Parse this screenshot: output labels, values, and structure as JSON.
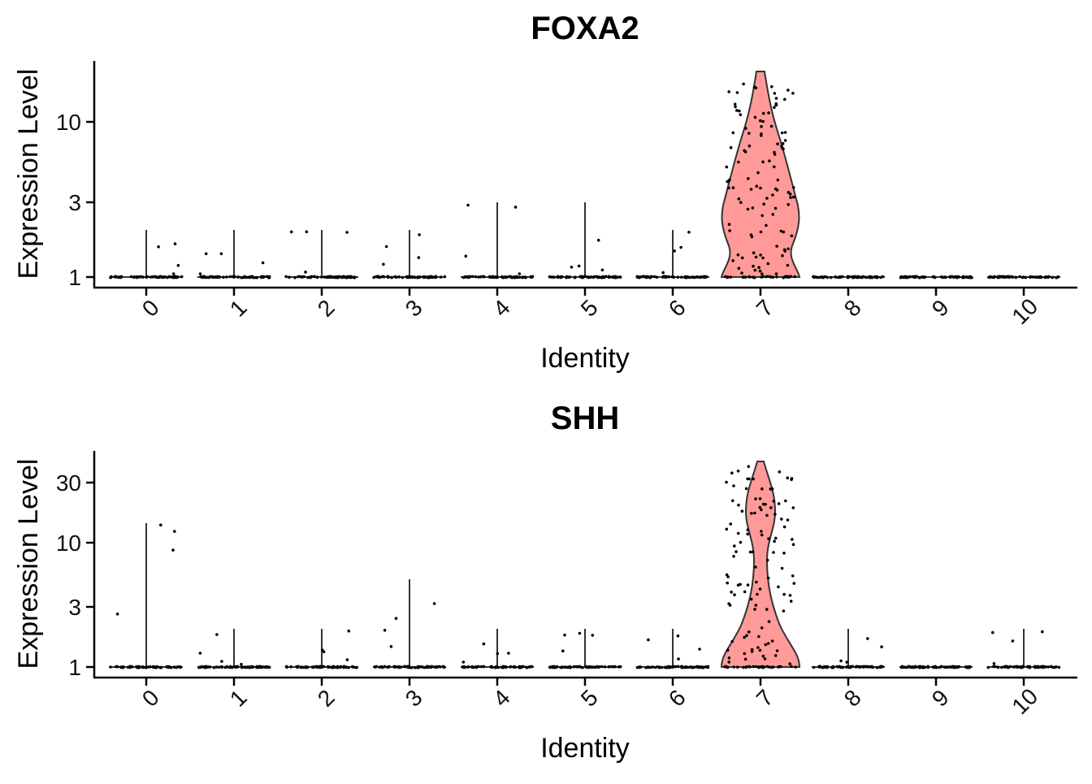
{
  "chart_data": [
    {
      "type": "violin",
      "title": "FOXA2",
      "xlabel": "Identity",
      "ylabel": "Expression Level",
      "y_scale": "log",
      "yticks": [
        "1",
        "3",
        "10"
      ],
      "categories": [
        "0",
        "1",
        "2",
        "3",
        "4",
        "5",
        "6",
        "7",
        "8",
        "9",
        "10"
      ],
      "max_values": [
        2,
        2,
        2,
        2,
        3,
        3,
        2,
        20,
        1,
        1,
        1
      ],
      "fill_color": "#ff9a99",
      "ylim": [
        1,
        20
      ]
    },
    {
      "type": "violin",
      "title": "SHH",
      "xlabel": "Identity",
      "ylabel": "Expression Level",
      "y_scale": "log",
      "yticks": [
        "1",
        "3",
        "10",
        "30"
      ],
      "categories": [
        "0",
        "1",
        "2",
        "3",
        "4",
        "5",
        "6",
        "7",
        "8",
        "9",
        "10"
      ],
      "max_values": [
        14,
        2,
        2,
        5,
        2,
        2,
        2,
        45,
        2,
        1,
        2
      ],
      "fill_color": "#ff9a99",
      "ylim": [
        1,
        45
      ]
    }
  ]
}
